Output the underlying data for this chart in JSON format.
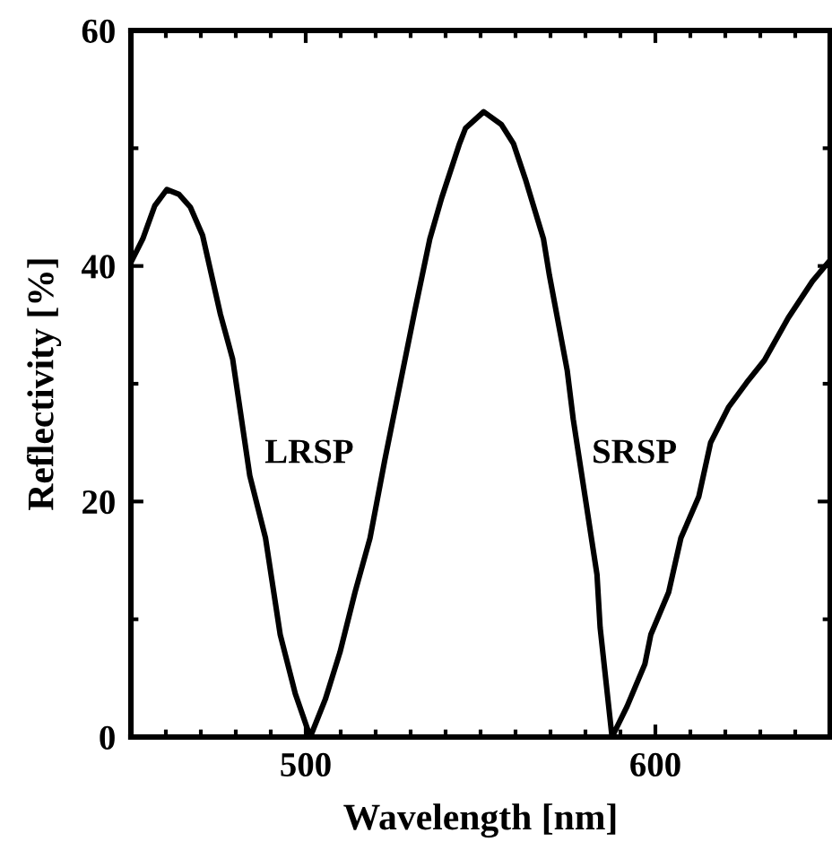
{
  "chart_data": {
    "type": "line",
    "xlabel": "Wavelength [nm]",
    "ylabel": "Reflectivity [%]",
    "xlim": [
      450,
      650
    ],
    "ylim": [
      0,
      60
    ],
    "xticks": [
      500,
      600
    ],
    "yticks": [
      0,
      20,
      40,
      60
    ],
    "series": [
      {
        "color": "#000000",
        "x": [
          450,
          453.4,
          456.8,
          460.3,
          463.7,
          467,
          470.5,
          475.6,
          479.1,
          484,
          488.5,
          492.7,
          497,
          501.3,
          505.6,
          509.8,
          514.1,
          518.4,
          522.6,
          527,
          531.2,
          535.5,
          538.9,
          544,
          545.7,
          550.9,
          556,
          559.4,
          562.8,
          568,
          569.7,
          574.8,
          576.5,
          579.9,
          583.3,
          584.2,
          587.6,
          591.9,
          597,
          598.7,
          603.8,
          607.3,
          612.4,
          615.8,
          620.9,
          626.1,
          631.2,
          638,
          644.9,
          650
        ],
        "values": [
          40.3,
          42.3,
          45.1,
          46.5,
          46.1,
          45,
          42.6,
          35.9,
          32.1,
          22.2,
          16.9,
          8.7,
          3.7,
          0,
          3.2,
          7.2,
          12.3,
          16.9,
          23.5,
          30,
          36.2,
          42.3,
          45.8,
          50.4,
          51.7,
          53.1,
          52,
          50.4,
          47.4,
          42.3,
          39.2,
          31.1,
          27,
          20.4,
          13.8,
          9.3,
          0,
          2.6,
          6.2,
          8.7,
          12.3,
          16.9,
          20.4,
          25,
          28,
          30.1,
          32,
          35.6,
          38.7,
          40.5
        ]
      }
    ],
    "annotations": [
      "LRSP",
      "SRSP"
    ],
    "grid": false,
    "legend": false,
    "marker": "none",
    "line_style": "solid"
  }
}
